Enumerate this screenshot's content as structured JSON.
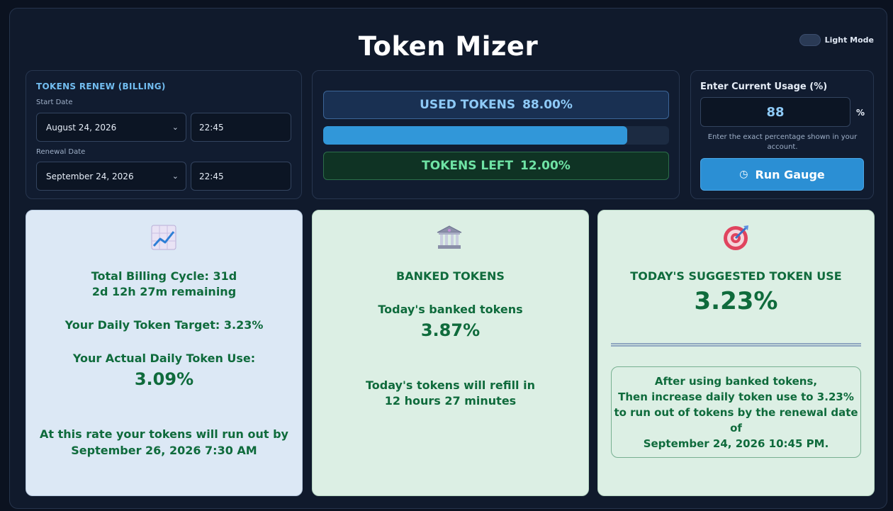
{
  "header": {
    "title": "Token Mizer",
    "theme_toggle_label": "Light Mode"
  },
  "billing": {
    "section_title": "TOKENS RENEW (BILLING)",
    "start_label": "Start Date",
    "start_date": "August 24, 2026",
    "start_time": "22:45",
    "renewal_label": "Renewal Date",
    "renewal_date": "September 24, 2026",
    "renewal_time": "22:45"
  },
  "gauge": {
    "used_label": "USED TOKENS",
    "used_value": "88.00%",
    "progress_fraction": 0.88,
    "left_label": "TOKENS LEFT",
    "left_value": "12.00%"
  },
  "usage_input": {
    "label": "Enter Current Usage (%)",
    "value": "88",
    "unit": "%",
    "hint": "Enter the exact percentage shown in your account.",
    "button_label": "Run Gauge",
    "button_icon": "clock-icon"
  },
  "cards": {
    "cycle": {
      "icon": "chart-increasing-icon",
      "total_cycle": "Total Billing Cycle: 31d",
      "remaining": "2d 12h 27m remaining",
      "daily_target": "Your Daily Token Target: 3.23%",
      "actual_label": "Your Actual Daily Token Use:",
      "actual_value": "3.09%",
      "runout_label": "At this rate your tokens will run out by",
      "runout_date": "September 26, 2026 7:30 AM"
    },
    "banked": {
      "icon": "bank-icon",
      "title": "BANKED TOKENS",
      "today_label": "Today's banked tokens",
      "today_value": "3.87%",
      "refill_label": "Today's tokens will refill in",
      "refill_time": "12 hours 27 minutes"
    },
    "suggested": {
      "icon": "target-icon",
      "title": "TODAY'S SUGGESTED TOKEN USE",
      "value": "3.23%",
      "advice_line1": "After using banked tokens,",
      "advice_line2": "Then increase daily token use to 3.23%",
      "advice_line3": "to run out of tokens by the renewal date",
      "advice_line4": "of",
      "advice_line5": "September 24, 2026 10:45 PM."
    }
  },
  "colors": {
    "accent_blue": "#2b8fd4",
    "used_text": "#8ecaf7",
    "left_text": "#6fe3a5",
    "card_text_green": "#0f6b3c"
  }
}
